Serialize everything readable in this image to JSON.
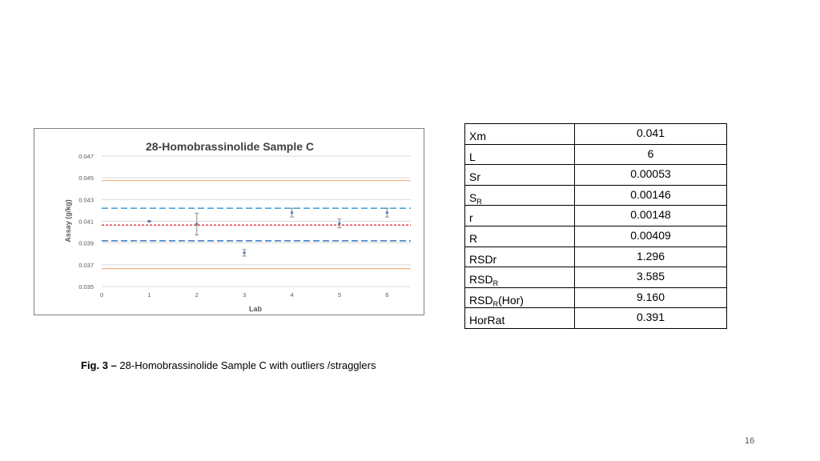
{
  "chart_data": {
    "type": "scatter",
    "title": "28-Homobrassinolide Sample C",
    "xlabel": "Lab",
    "ylabel": "Assay (g/kg)",
    "xlim": [
      0,
      6.5
    ],
    "ylim": [
      0.035,
      0.047
    ],
    "x_ticks": [
      "0",
      "1",
      "2",
      "3",
      "4",
      "5",
      "6"
    ],
    "y_ticks": [
      "0.035",
      "0.037",
      "0.039",
      "0.041",
      "0.043",
      "0.045",
      "0.047"
    ],
    "grid": true,
    "points": [
      {
        "x": 1,
        "y": 0.041,
        "err": 5e-05
      },
      {
        "x": 2,
        "y": 0.04075,
        "err": 0.001
      },
      {
        "x": 3,
        "y": 0.0381,
        "err": 0.0003
      },
      {
        "x": 4,
        "y": 0.0418,
        "err": 0.0004
      },
      {
        "x": 5,
        "y": 0.0408,
        "err": 0.0004
      },
      {
        "x": 6,
        "y": 0.0418,
        "err": 0.0004
      }
    ],
    "reference_lines": [
      {
        "y": 0.04065,
        "style": "dotted",
        "color": "#e0404a"
      },
      {
        "y": 0.0422,
        "style": "dashed",
        "color": "#4aa3d8"
      },
      {
        "y": 0.0392,
        "style": "dashed",
        "color": "#3f7fc4"
      },
      {
        "y": 0.04475,
        "style": "solid",
        "color": "#f4b183"
      },
      {
        "y": 0.03665,
        "style": "solid",
        "color": "#f4b183"
      }
    ],
    "colors": {
      "point": "#4a7ebb",
      "error_bar": "#8c8c8c",
      "grid": "#d9d9d9",
      "axis_text": "#595959"
    }
  },
  "table": {
    "rows": [
      {
        "key_main": "Xm",
        "key_sub": "",
        "key_rest": "",
        "value": "0.041"
      },
      {
        "key_main": "L",
        "key_sub": "",
        "key_rest": "",
        "value": "6"
      },
      {
        "key_main": "Sr",
        "key_sub": "",
        "key_rest": "",
        "value": "0.00053"
      },
      {
        "key_main": "S",
        "key_sub": "R",
        "key_rest": "",
        "value": "0.00146"
      },
      {
        "key_main": "r",
        "key_sub": "",
        "key_rest": "",
        "value": "0.00148"
      },
      {
        "key_main": "R",
        "key_sub": "",
        "key_rest": "",
        "value": "0.00409"
      },
      {
        "key_main": "RSDr",
        "key_sub": "",
        "key_rest": "",
        "value": "1.296"
      },
      {
        "key_main": "RSD",
        "key_sub": "R",
        "key_rest": "",
        "value": "3.585"
      },
      {
        "key_main": "RSD",
        "key_sub": "R",
        "key_rest": "(Hor)",
        "value": "9.160"
      },
      {
        "key_main": "HorRat",
        "key_sub": "",
        "key_rest": "",
        "value": "0.391"
      }
    ]
  },
  "caption": {
    "label": "Fig. 3 –",
    "text": " 28-Homobrassinolide Sample C with outliers /stragglers"
  },
  "page_number": "16"
}
